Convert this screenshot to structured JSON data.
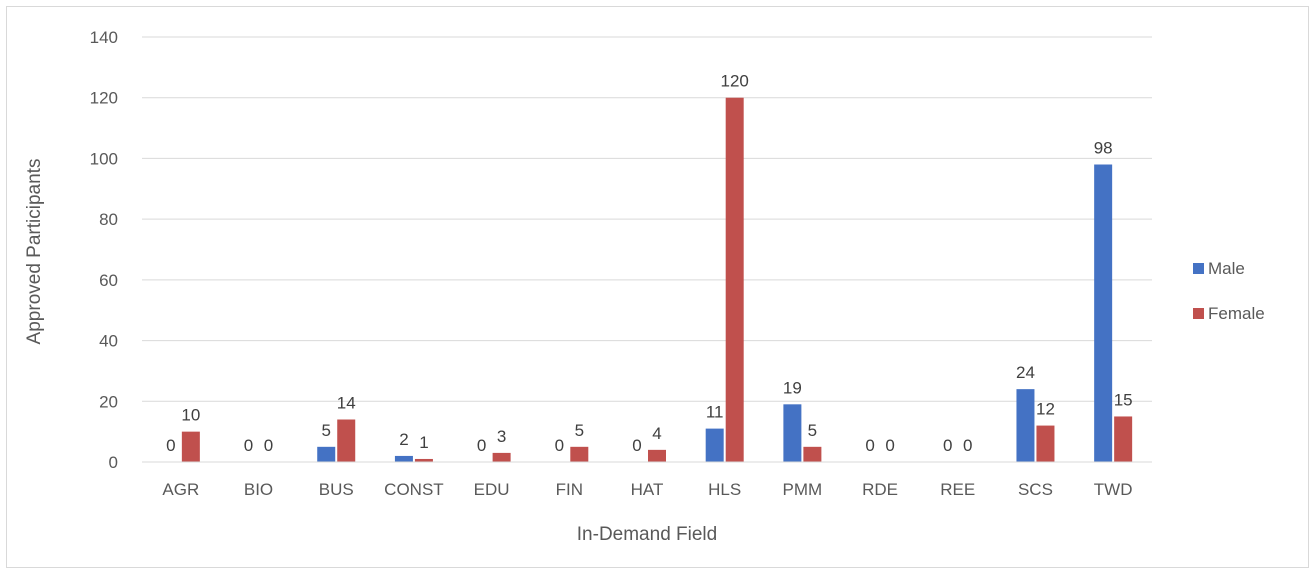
{
  "chart_data": {
    "type": "bar",
    "title": "",
    "xlabel": "In-Demand Field",
    "ylabel": "Approved Participants",
    "ylim": [
      0,
      140
    ],
    "yticks": [
      0,
      20,
      40,
      60,
      80,
      100,
      120,
      140
    ],
    "grid": true,
    "legend": "right",
    "categories": [
      "AGR",
      "BIO",
      "BUS",
      "CONST",
      "EDU",
      "FIN",
      "HAT",
      "HLS",
      "PMM",
      "RDE",
      "REE",
      "SCS",
      "TWD"
    ],
    "series": [
      {
        "name": "Male",
        "color": "#4472c4",
        "values": [
          0,
          0,
          5,
          2,
          0,
          0,
          0,
          11,
          19,
          0,
          0,
          24,
          98
        ]
      },
      {
        "name": "Female",
        "color": "#c0504d",
        "values": [
          10,
          0,
          14,
          1,
          3,
          5,
          4,
          120,
          5,
          0,
          0,
          12,
          15
        ]
      }
    ]
  }
}
